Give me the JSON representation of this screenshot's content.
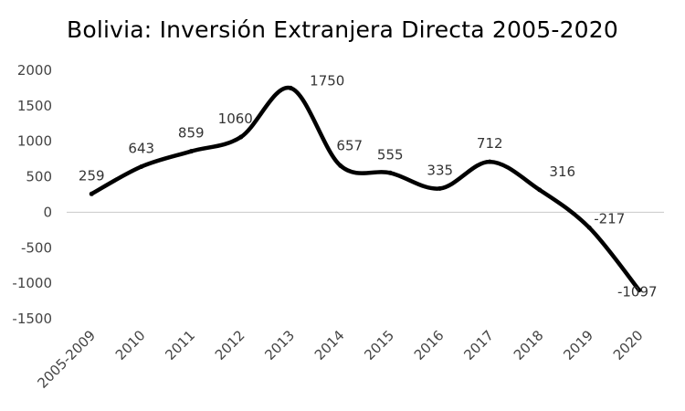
{
  "chart_data": {
    "type": "line",
    "title": "Bolivia: Inversión Extranjera Directa 2005-2020",
    "xlabel": "",
    "ylabel": "",
    "categories": [
      "2005-2009",
      "2010",
      "2011",
      "2012",
      "2013",
      "2014",
      "2015",
      "2016",
      "2017",
      "2018",
      "2019",
      "2020"
    ],
    "series": [
      {
        "values": [
          259,
          643,
          859,
          1060,
          1750,
          657,
          555,
          335,
          712,
          316,
          -217,
          -1097
        ],
        "labels": [
          "259",
          "643",
          "859",
          "1060",
          "1750",
          "657",
          "555",
          "335",
          "712",
          "316",
          "-217",
          "-1097"
        ]
      }
    ],
    "ylim": [
      -1500,
      2000
    ],
    "yticks": [
      2000,
      1500,
      1000,
      500,
      0,
      -500,
      -1000,
      -1500
    ],
    "ytick_labels": [
      "2000",
      "1500",
      "1000",
      "500",
      "0",
      "-500",
      "-1000",
      "-1500"
    ],
    "line_style": "smooth",
    "line_color": "#000000",
    "zero_line_color": "#c8c8c8",
    "gridlines": false,
    "legend": "none"
  }
}
